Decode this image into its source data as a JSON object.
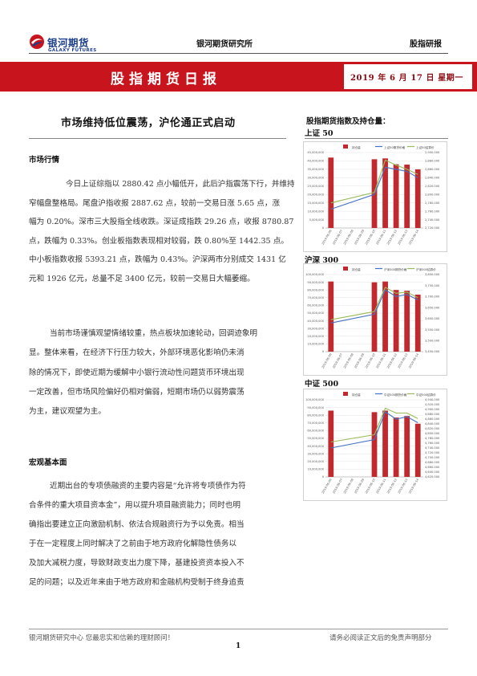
{
  "header": {
    "logo_cn": "银河期货",
    "logo_en": "GALAXY FUTURES",
    "institute": "银河期货研究所",
    "category": "股指研报",
    "banner_title": "股指期货日报",
    "date": "2019 年 6 月 17 日   星期一"
  },
  "colors": {
    "banner": "#c8141c",
    "bar": "#c0292e",
    "line_price": "#4472c4",
    "line_settle": "#9bbb59"
  },
  "article": {
    "title": "市场维持低位震荡，沪伦通正式启动",
    "section1_title": "市场行情",
    "section1_paragraphs": [
      [
        "今日上证综指以 2880.42 点小幅低开，此后沪指震荡下行，并维持",
        "窄幅盘整格局。尾盘沪指收报 2887.62 点，较前一交易日涨 5.65 点，涨",
        "幅为 0.20%。深市三大股指全线收跌。深证成指跌 29.26 点，收报 8780.87",
        "点，跌幅为 0.33%。创业板指数表现相对较弱，跌 0.80%至 1442.35 点。",
        "中小板指数收报 5393.21 点，跌幅为 0.43%。沪深两市分别成交 1431 亿",
        "元和 1926 亿元，总量不足 3400 亿元，较前一交易日大幅萎缩。"
      ],
      [
        "当前市场谨慎观望情绪较重，热点板块加速轮动，回调迹象明",
        "显。整体来看，在经济下行压力较大，外部环境恶化影响仍未消",
        "除的情况下，即使近期为缓解中小银行流动性问题货币环境出现",
        "一定改善，但市场风险偏好仍相对偏弱，短期市场仍以弱势震荡",
        "为主，建议观望为主。"
      ]
    ],
    "section2_title": "宏观基本面",
    "section2_paragraph": [
      "近期出台的专项债融资的主要内容是“允许将专项债作为符",
      "合条件的重大项目资本金”，用以提升项目融资能力；同时也明",
      "确指出要建立正向激励机制、依法合规融资行为予以免责。相当",
      "于在一定程度上同时解决了之前由于地方政府化解隐性债务以",
      "及加大减税力度，导致财政支出力度下降，基建投资资本投入不",
      "足的问题；以及近年来由于地方政府和金融机构受制于终身追责"
    ]
  },
  "sidebar": {
    "heading": "股指期货指数及持仓量：",
    "charts": [
      {
        "label": "上证 50"
      },
      {
        "label": "沪深 300"
      },
      {
        "label": "中证 500"
      }
    ]
  },
  "chart_data": [
    {
      "type": "bar",
      "title": "上证 50",
      "categories": [
        "2019-06-06",
        "2019-06-07",
        "2019-06-08",
        "2019-06-09",
        "2019-06-10",
        "2019-06-11",
        "2019-06-12",
        "2019-06-13",
        "2019-06-14"
      ],
      "series": [
        {
          "name": "持仓量",
          "type": "bar",
          "axis": "left",
          "values": [
            42000000,
            null,
            null,
            null,
            41000000,
            41500000,
            38000000,
            37800000,
            35000000
          ]
        },
        {
          "name": "上证50期货价格",
          "type": "line",
          "axis": "right",
          "values": [
            2765,
            null,
            null,
            null,
            2800,
            2865,
            2860,
            2855,
            2840
          ]
        },
        {
          "name": "上证50结算价",
          "type": "line",
          "axis": "right",
          "values": [
            2780,
            null,
            null,
            null,
            2805,
            2882,
            2870,
            2860,
            2848
          ]
        }
      ],
      "ylim_left": [
        0,
        45000000
      ],
      "ylim_right": [
        2720,
        2900
      ],
      "left_ticks": [
        "45,000,000",
        "40,000,000",
        "35,000,000",
        "30,000,000",
        "25,000,000",
        "20,000,000",
        "15,000,000",
        "10,000,000",
        "5,000,000",
        "0"
      ],
      "right_ticks": [
        "2,900.000",
        "2,880.000",
        "2,860.000",
        "2,840.000",
        "2,820.000",
        "2,800.000",
        "2,780.000",
        "2,760.000",
        "2,740.000",
        "2,720.000"
      ],
      "legend": "top",
      "grid": true
    },
    {
      "type": "bar",
      "title": "沪深 300",
      "categories": [
        "2019-06-06",
        "2019-06-07",
        "2019-06-08",
        "2019-06-09",
        "2019-06-10",
        "2019-06-11",
        "2019-06-12",
        "2019-06-13",
        "2019-06-14"
      ],
      "series": [
        {
          "name": "持仓量",
          "type": "bar",
          "axis": "left",
          "values": [
            91000000,
            null,
            null,
            null,
            90000000,
            91000000,
            80000000,
            79000000,
            74000000
          ]
        },
        {
          "name": "沪深300期货价格",
          "type": "line",
          "axis": "right",
          "values": [
            3580,
            null,
            null,
            null,
            3620,
            3730,
            3700,
            3710,
            3685
          ]
        },
        {
          "name": "沪深300结算价",
          "type": "line",
          "axis": "right",
          "values": [
            3595,
            null,
            null,
            null,
            3632,
            3742,
            3715,
            3720,
            3695
          ]
        }
      ],
      "ylim_left": [
        0,
        100000000
      ],
      "ylim_right": [
        3450,
        3800
      ],
      "left_ticks": [
        "100,000,000",
        "90,000,000",
        "80,000,000",
        "70,000,000",
        "60,000,000",
        "50,000,000",
        "40,000,000",
        "30,000,000",
        "20,000,000",
        "10,000,000",
        "0"
      ],
      "right_ticks": [
        "3,800.000",
        "3,750.000",
        "3,700.000",
        "3,650.000",
        "3,600.000",
        "3,550.000",
        "3,500.000",
        "3,450.000"
      ],
      "legend": "top",
      "grid": true
    },
    {
      "type": "bar",
      "title": "中证 500",
      "categories": [
        "2019-06-06",
        "2019-06-07",
        "2019-06-08",
        "2019-06-09",
        "2019-06-10",
        "2019-06-11",
        "2019-06-12",
        "2019-06-13",
        "2019-06-14"
      ],
      "series": [
        {
          "name": "持仓量",
          "type": "bar",
          "axis": "left",
          "values": [
            86000000,
            null,
            null,
            null,
            84000000,
            86000000,
            77000000,
            79000000,
            69000000
          ]
        },
        {
          "name": "中证500期货价格",
          "type": "line",
          "axis": "right",
          "values": [
            4740,
            null,
            null,
            null,
            4775,
            4890,
            4860,
            4870,
            4845
          ]
        },
        {
          "name": "中证500结算价",
          "type": "line",
          "axis": "right",
          "values": [
            4765,
            null,
            null,
            null,
            4795,
            4905,
            4885,
            4885,
            4862
          ]
        }
      ],
      "ylim_left": [
        0,
        100000000
      ],
      "ylim_right": [
        4620,
        4940
      ],
      "left_ticks": [
        "100,000,000",
        "90,000,000",
        "80,000,000",
        "70,000,000",
        "60,000,000",
        "50,000,000",
        "40,000,000",
        "30,000,000",
        "20,000,000",
        "10,000,000",
        "0"
      ],
      "right_ticks": [
        "4,940.000",
        "4,920.000",
        "4,900.000",
        "4,880.000",
        "4,860.000",
        "4,840.000",
        "4,820.000",
        "4,800.000",
        "4,780.000",
        "4,760.000",
        "4,740.000",
        "4,720.000",
        "4,700.000",
        "4,680.000",
        "4,660.000",
        "4,640.000",
        "4,620.000"
      ],
      "legend": "top",
      "grid": true
    }
  ],
  "footer": {
    "left": "银河期货研究中心  您最忠实和信赖的理财顾问！",
    "right": "请务必阅读正文后的免责声明部分",
    "page": "1"
  }
}
